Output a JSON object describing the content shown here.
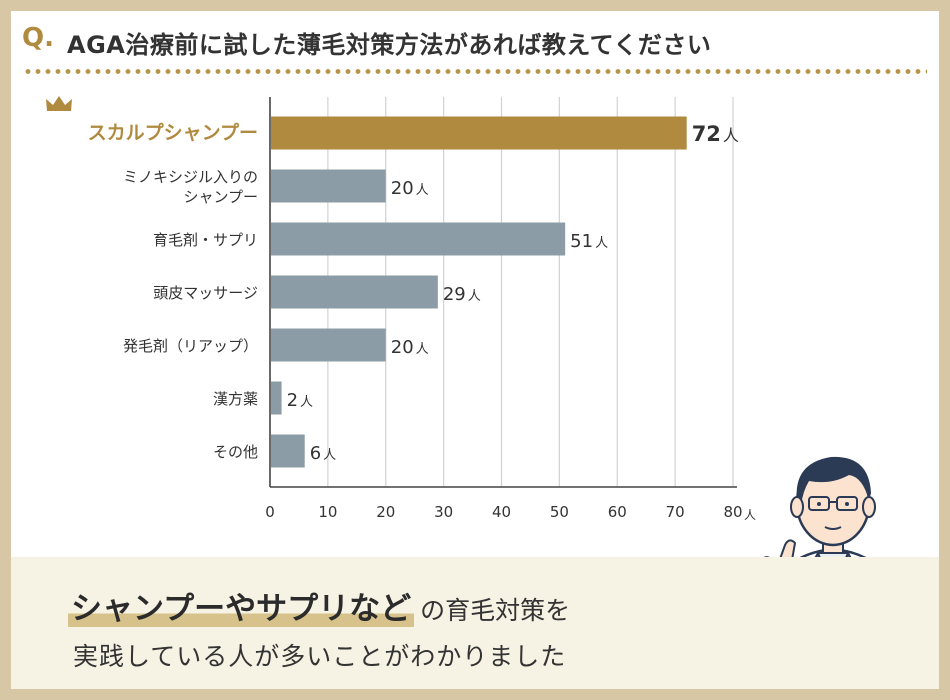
{
  "header": {
    "q_mark": "Q.",
    "question": "AGA治療前に試した薄毛対策方法があれば教えてください"
  },
  "chart_data": {
    "type": "bar",
    "orientation": "horizontal",
    "categories": [
      [
        "スカルプシャンプー"
      ],
      [
        "ミノキシジル入りの",
        "シャンプー"
      ],
      [
        "育毛剤・サプリ"
      ],
      [
        "頭皮マッサージ"
      ],
      [
        "発毛剤（リアップ）"
      ],
      [
        "漢方薬"
      ],
      [
        "その他"
      ]
    ],
    "values": [
      72,
      20,
      51,
      29,
      20,
      2,
      6
    ],
    "unit": "人",
    "xlim": [
      0,
      80
    ],
    "xticks": [
      0,
      10,
      20,
      30,
      40,
      50,
      60,
      70,
      80
    ],
    "xtick_unit": "人",
    "grid": true,
    "highlight_index": 0,
    "colors": {
      "highlight": "#b08a3e",
      "bar": "#8c9ca6",
      "grid": "#d2d2d2",
      "highlight_label": "#b08a3e",
      "text": "#333333"
    }
  },
  "footer": {
    "highlight_text": "シャンプーやサプリなど",
    "line1_rest": "の育毛対策を",
    "line2": "実践している人が多いことがわかりました"
  },
  "illustration": {
    "icon": "doctor-with-clipboard-pointing"
  },
  "crown_icon": "crown-icon"
}
